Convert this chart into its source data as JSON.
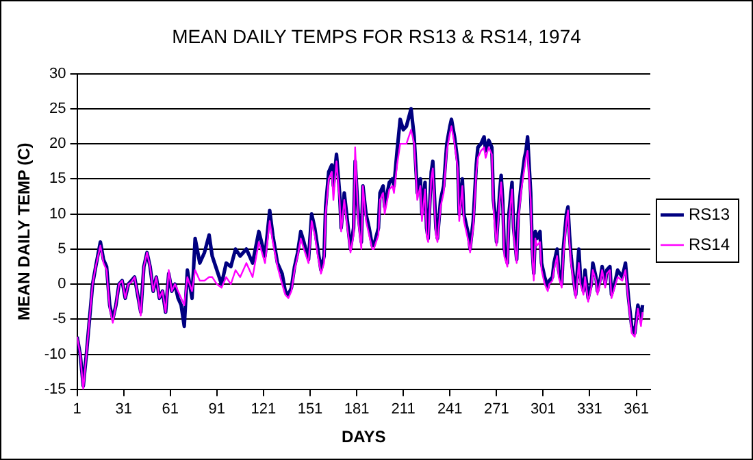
{
  "chart_data": {
    "type": "line",
    "title": "MEAN DAILY TEMPS FOR RS13 & RS14, 1974",
    "xlabel": "DAYS",
    "ylabel": "MEAN DAILY TEMP (C)",
    "x": [
      1,
      3,
      5,
      7,
      9,
      11,
      13,
      16,
      18,
      20,
      22,
      24,
      26,
      28,
      30,
      32,
      34,
      36,
      38,
      40,
      42,
      44,
      46,
      48,
      50,
      52,
      54,
      56,
      58,
      60,
      62,
      64,
      66,
      68,
      70,
      72,
      75,
      77,
      80,
      83,
      86,
      88,
      91,
      94,
      97,
      100,
      103,
      106,
      110,
      114,
      118,
      122,
      125,
      127,
      130,
      133,
      135,
      137,
      139,
      141,
      143,
      145,
      147,
      150,
      152,
      154,
      156,
      158,
      160,
      161,
      163,
      165,
      166,
      168,
      170,
      171,
      173,
      175,
      177,
      179,
      180,
      182,
      184,
      185,
      187,
      189,
      191,
      192,
      195,
      196,
      198,
      199,
      202,
      204,
      205,
      207,
      209,
      211,
      213,
      216,
      218,
      220,
      222,
      223,
      225,
      226,
      227,
      229,
      230,
      232,
      233,
      235,
      237,
      239,
      241,
      242,
      244,
      246,
      247,
      249,
      250,
      253,
      254,
      256,
      258,
      259,
      261,
      263,
      264,
      266,
      268,
      269,
      270,
      271,
      273,
      274,
      275,
      276,
      278,
      279,
      281,
      282,
      284,
      285,
      287,
      289,
      290,
      291,
      293,
      294,
      295,
      296,
      297,
      299,
      300,
      302,
      304,
      305,
      307,
      308,
      310,
      311,
      313,
      314,
      316,
      317,
      318,
      319,
      321,
      322,
      324,
      325,
      327,
      328,
      330,
      332,
      333,
      335,
      336,
      338,
      339,
      341,
      342,
      344,
      345,
      347,
      349,
      352,
      354,
      356,
      358,
      360,
      362,
      364,
      365
    ],
    "series": [
      {
        "name": "RS13",
        "color": "#000080",
        "values": [
          -7.5,
          -10,
          -14.5,
          -10,
          -5,
          0,
          2.5,
          6,
          3.5,
          2.5,
          -3,
          -5,
          -3,
          0,
          0.5,
          -2,
          0,
          0.5,
          1,
          -1.5,
          -4,
          2.5,
          4.5,
          2.5,
          -1,
          1,
          -2,
          -1,
          -4,
          1.5,
          -1,
          0,
          -2,
          -3,
          -6,
          2,
          -2,
          6.5,
          3,
          4.5,
          7,
          4,
          2,
          0,
          3,
          2.5,
          5,
          4,
          5,
          3,
          7.5,
          4,
          10.5,
          7,
          3,
          1.5,
          -1,
          -1.5,
          -0.5,
          2.5,
          4.5,
          7.5,
          6,
          3.5,
          10,
          8,
          5,
          2,
          4,
          11,
          16,
          17,
          14,
          18.5,
          13,
          8,
          13,
          9,
          5,
          8,
          17.5,
          10,
          6,
          14,
          10,
          8,
          5.5,
          5.5,
          8,
          13,
          14,
          11,
          14.5,
          15,
          14,
          19,
          23.5,
          22,
          22.5,
          25,
          21,
          13,
          15,
          10,
          14.5,
          8,
          6.5,
          16,
          17.5,
          8,
          6.5,
          12,
          14,
          20,
          22.5,
          23.5,
          21,
          17.5,
          10,
          15,
          10,
          7,
          5,
          9,
          17,
          19.5,
          20,
          21,
          19,
          20.5,
          19.5,
          12,
          10,
          6,
          13,
          15.5,
          12,
          5,
          3,
          10,
          14.5,
          8,
          3.5,
          10,
          14.5,
          18,
          19,
          21,
          13,
          5,
          1.5,
          7.5,
          6.5,
          7.5,
          3,
          1,
          -0.5,
          0.5,
          1,
          3,
          5,
          2,
          0,
          5,
          10,
          11,
          7,
          4,
          0,
          -1.5,
          5,
          1,
          -1,
          2,
          -2,
          0,
          3,
          1,
          -1,
          1,
          2.5,
          0,
          2,
          2.5,
          -1.5,
          0,
          2,
          1,
          3,
          -2,
          -6,
          -7,
          -3,
          -5,
          -3
        ]
      },
      {
        "name": "RS14",
        "color": "#ff00ff",
        "values": [
          -7.5,
          -10,
          -15,
          -10,
          -5,
          0,
          2.5,
          5.5,
          3,
          2,
          -3.5,
          -5.5,
          -3,
          0,
          0.5,
          -2,
          0,
          0.3,
          1,
          -1.5,
          -4.5,
          2.5,
          4.5,
          2.5,
          -1,
          1,
          -2,
          -1,
          -4,
          2,
          -1,
          0,
          -1,
          -2,
          -3,
          1,
          -1,
          2,
          0.5,
          0.5,
          1,
          1,
          0,
          -0.5,
          1,
          0,
          2,
          1,
          3,
          1,
          6,
          3,
          9,
          6,
          2.5,
          0,
          -1.5,
          -2,
          -1,
          2,
          4,
          6.5,
          5,
          3,
          9,
          7,
          4,
          1.5,
          3,
          10,
          15,
          16,
          12,
          17.5,
          12,
          7.5,
          12,
          8,
          4.5,
          7,
          19.5,
          9,
          5,
          14,
          9,
          7,
          5,
          5,
          7,
          12,
          13,
          10,
          13.5,
          14,
          13,
          17,
          20,
          20,
          20,
          22,
          20,
          12,
          14,
          9,
          13.5,
          7,
          6,
          15,
          16.5,
          7,
          6,
          11,
          13,
          19,
          21.5,
          22.5,
          20,
          16.5,
          9,
          14,
          9,
          6,
          4.5,
          8,
          16,
          18,
          19,
          19.5,
          18,
          19.5,
          18.5,
          11,
          8,
          5.5,
          12,
          14.5,
          11,
          4,
          2.5,
          9,
          13.5,
          7,
          3,
          9,
          13.5,
          16.5,
          18,
          19,
          12,
          4,
          0.5,
          6.5,
          5.5,
          6,
          2,
          0,
          -1,
          0,
          0.5,
          2,
          4,
          1,
          -0.5,
          4,
          9,
          10.5,
          6,
          3,
          -0.5,
          -2,
          3,
          0,
          -1.5,
          1,
          -2.5,
          -0.5,
          2,
          0.5,
          -1.5,
          0.5,
          2,
          -0.5,
          1.5,
          2,
          -2,
          -0.5,
          1,
          0.5,
          2,
          -2.5,
          -7,
          -7.5,
          -3.5,
          -6,
          -4
        ]
      }
    ],
    "xlim": [
      1,
      370
    ],
    "xticks": [
      1,
      31,
      61,
      91,
      121,
      151,
      181,
      211,
      241,
      271,
      301,
      331,
      361
    ],
    "ylim": [
      -15,
      30
    ],
    "yticks": [
      -15,
      -10,
      -5,
      0,
      5,
      10,
      15,
      20,
      25,
      30
    ],
    "grid": "y",
    "legend": "right",
    "marker": "none",
    "line_style": "solid"
  }
}
